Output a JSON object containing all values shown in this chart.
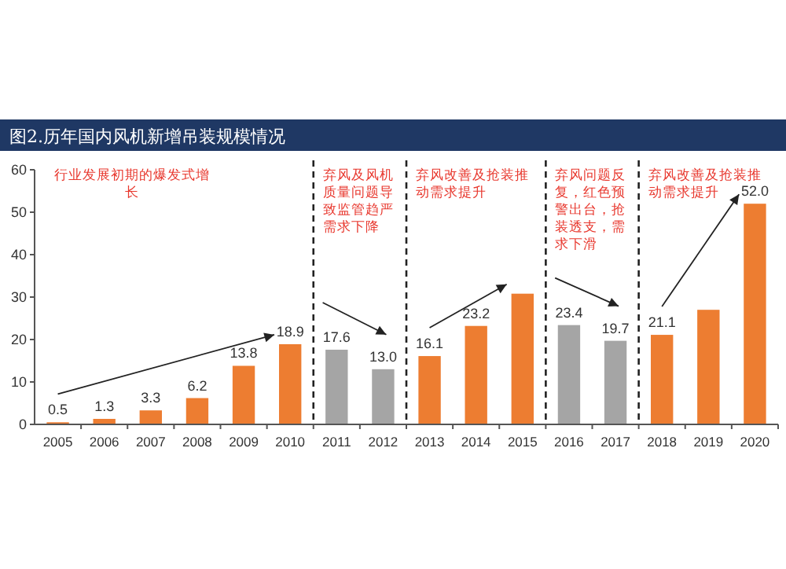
{
  "chart_data": {
    "type": "bar",
    "title": "图2.历年国内风机新增吊装规模情况",
    "x": [
      2005,
      2006,
      2007,
      2008,
      2009,
      2010,
      2011,
      2012,
      2013,
      2014,
      2015,
      2016,
      2017,
      2018,
      2019,
      2020
    ],
    "values": [
      0.5,
      1.3,
      3.3,
      6.2,
      13.8,
      18.9,
      17.6,
      13.0,
      16.1,
      23.2,
      30.8,
      23.4,
      19.7,
      21.1,
      27.0,
      52.0
    ],
    "colors": [
      "#ed7d31",
      "#ed7d31",
      "#ed7d31",
      "#ed7d31",
      "#ed7d31",
      "#ed7d31",
      "#a5a5a5",
      "#a5a5a5",
      "#ed7d31",
      "#ed7d31",
      "#ed7d31",
      "#a5a5a5",
      "#a5a5a5",
      "#ed7d31",
      "#ed7d31",
      "#ed7d31"
    ],
    "value_labels": [
      "0.5",
      "1.3",
      "3.3",
      "6.2",
      "13.8",
      "18.9",
      "17.6",
      "13.0",
      "16.1",
      "23.2",
      null,
      "23.4",
      "19.7",
      "21.1",
      null,
      "52.0"
    ],
    "xlim": [
      2004.5,
      2020.5
    ],
    "xticks": [
      2005,
      2006,
      2007,
      2008,
      2009,
      2010,
      2011,
      2012,
      2013,
      2014,
      2015,
      2016,
      2017,
      2018,
      2019,
      2020
    ],
    "ylim": [
      0,
      60
    ],
    "yticks": [
      0,
      10,
      20,
      30,
      40,
      50,
      60
    ],
    "ref_lines": [
      {
        "axis": "x",
        "value": 2010.5,
        "line_style": "dashed",
        "color": "#222222"
      },
      {
        "axis": "x",
        "value": 2012.5,
        "line_style": "dashed",
        "color": "#222222"
      },
      {
        "axis": "x",
        "value": 2015.5,
        "line_style": "dashed",
        "color": "#222222"
      },
      {
        "axis": "x",
        "value": 2017.5,
        "line_style": "dashed",
        "color": "#222222"
      }
    ],
    "annotations": [
      "行业发展初期的爆发式增长",
      "弃风及风机质量问题导致监管趋严需求下降",
      "弃风改善及抢装推动需求提升",
      "弃风问题反复，红色预警出台，抢装透支，需求下滑",
      "弃风改善及抢装推动需求提升"
    ],
    "grid": false
  }
}
